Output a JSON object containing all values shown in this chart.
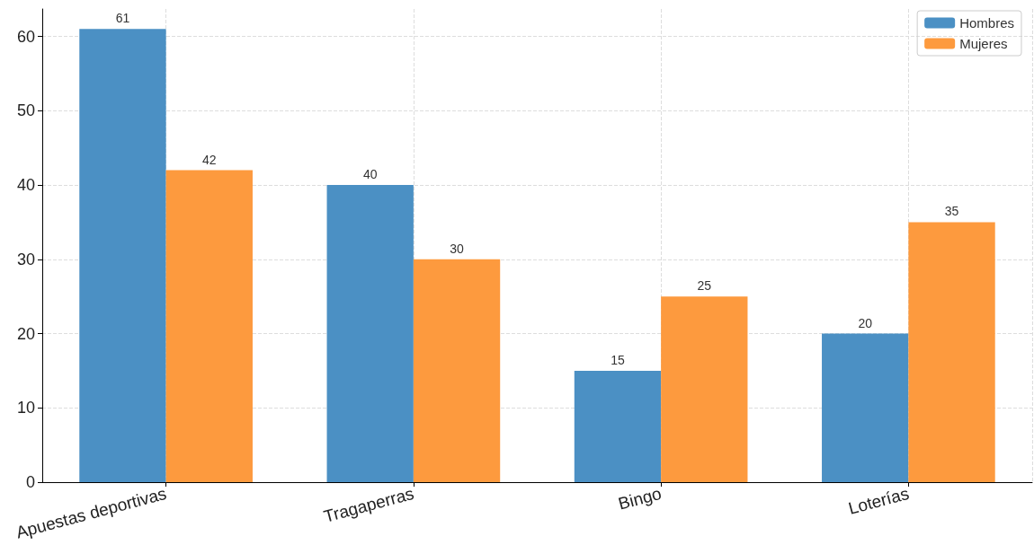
{
  "chart_data": {
    "type": "bar",
    "categories": [
      "Apuestas deportivas",
      "Tragaperras",
      "Bingo",
      "Loterías"
    ],
    "series": [
      {
        "name": "Hombres",
        "color": "#4b90c4",
        "values": [
          61,
          40,
          15,
          20
        ]
      },
      {
        "name": "Mujeres",
        "color": "#fd9a3e",
        "values": [
          42,
          30,
          25,
          35
        ]
      }
    ],
    "ylim": [
      0,
      63.7
    ],
    "yticks": [
      0,
      10,
      20,
      30,
      40,
      50,
      60
    ],
    "grid": true,
    "legend": "top right",
    "data_labels": true
  }
}
